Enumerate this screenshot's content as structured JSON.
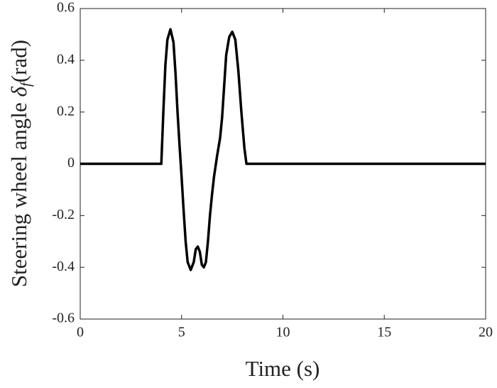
{
  "chart_data": {
    "type": "line",
    "xlabel": "Time (s)",
    "ylabel": {
      "text": "Steering wheel angle",
      "symbol": "δ",
      "subscript": "f",
      "unit": "(rad)"
    },
    "x": [
      0,
      4,
      4.1,
      4.2,
      4.3,
      4.45,
      4.6,
      4.7,
      4.8,
      4.9,
      5.0,
      5.1,
      5.2,
      5.3,
      5.45,
      5.6,
      5.7,
      5.8,
      5.9,
      6.0,
      6.1,
      6.2,
      6.3,
      6.4,
      6.5,
      6.6,
      6.75,
      6.9,
      7.0,
      7.1,
      7.2,
      7.35,
      7.5,
      7.65,
      7.8,
      7.95,
      8.1,
      8.2,
      20
    ],
    "values": [
      0,
      0,
      0.2,
      0.38,
      0.48,
      0.52,
      0.47,
      0.35,
      0.2,
      0.07,
      -0.05,
      -0.18,
      -0.3,
      -0.38,
      -0.41,
      -0.38,
      -0.33,
      -0.32,
      -0.34,
      -0.39,
      -0.4,
      -0.38,
      -0.3,
      -0.2,
      -0.12,
      -0.05,
      0.03,
      0.1,
      0.18,
      0.3,
      0.42,
      0.49,
      0.51,
      0.48,
      0.36,
      0.2,
      0.06,
      0,
      0
    ],
    "color": "#000000",
    "xlim": [
      0,
      20
    ],
    "xticks": [
      0,
      5,
      10,
      15,
      20
    ],
    "ylim": [
      -0.6,
      0.6
    ],
    "yticks": [
      -0.6,
      -0.4,
      -0.2,
      0,
      0.2,
      0.4,
      0.6
    ]
  }
}
